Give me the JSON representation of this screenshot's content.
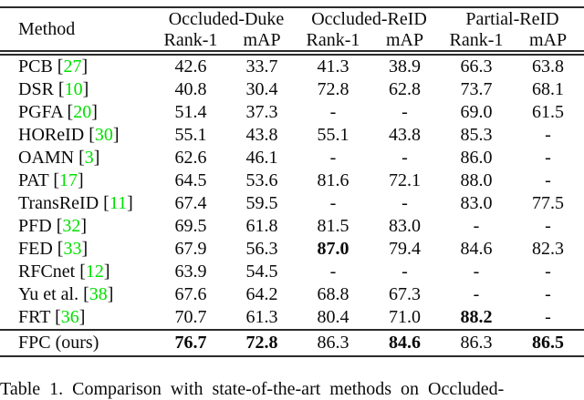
{
  "table": {
    "method_header": "Method",
    "groups": [
      "Occluded-Duke",
      "Occluded-ReID",
      "Partial-ReID"
    ],
    "sub_headers": [
      "Rank-1",
      "mAP",
      "Rank-1",
      "mAP",
      "Rank-1",
      "mAP"
    ],
    "rows": [
      {
        "method": "PCB",
        "cite": "27",
        "values": [
          "42.6",
          "33.7",
          "41.3",
          "38.9",
          "66.3",
          "63.8"
        ],
        "bold": []
      },
      {
        "method": "DSR",
        "cite": "10",
        "values": [
          "40.8",
          "30.4",
          "72.8",
          "62.8",
          "73.7",
          "68.1"
        ],
        "bold": []
      },
      {
        "method": "PGFA",
        "cite": "20",
        "values": [
          "51.4",
          "37.3",
          "-",
          "-",
          "69.0",
          "61.5"
        ],
        "bold": []
      },
      {
        "method": "HOReID",
        "cite": "30",
        "values": [
          "55.1",
          "43.8",
          "55.1",
          "43.8",
          "85.3",
          "-"
        ],
        "bold": []
      },
      {
        "method": "OAMN",
        "cite": "3",
        "values": [
          "62.6",
          "46.1",
          "-",
          "-",
          "86.0",
          "-"
        ],
        "bold": []
      },
      {
        "method": "PAT",
        "cite": "17",
        "values": [
          "64.5",
          "53.6",
          "81.6",
          "72.1",
          "88.0",
          "-"
        ],
        "bold": []
      },
      {
        "method": "TransReID",
        "cite": "11",
        "values": [
          "67.4",
          "59.5",
          "-",
          "-",
          "83.0",
          "77.5"
        ],
        "bold": []
      },
      {
        "method": "PFD",
        "cite": "32",
        "values": [
          "69.5",
          "61.8",
          "81.5",
          "83.0",
          "-",
          "-"
        ],
        "bold": []
      },
      {
        "method": "FED",
        "cite": "33",
        "values": [
          "67.9",
          "56.3",
          "87.0",
          "79.4",
          "84.6",
          "82.3"
        ],
        "bold": [
          2
        ]
      },
      {
        "method": "RFCnet",
        "cite": "12",
        "values": [
          "63.9",
          "54.5",
          "-",
          "-",
          "-",
          "-"
        ],
        "bold": []
      },
      {
        "method": "Yu et al.",
        "cite": "38",
        "values": [
          "67.6",
          "64.2",
          "68.8",
          "67.3",
          "-",
          "-"
        ],
        "bold": []
      },
      {
        "method": "FRT",
        "cite": "36",
        "values": [
          "70.7",
          "61.3",
          "80.4",
          "71.0",
          "88.2",
          "-"
        ],
        "bold": [
          4
        ]
      }
    ],
    "final_row": {
      "method": "FPC (ours)",
      "values": [
        "76.7",
        "72.8",
        "86.3",
        "84.6",
        "86.3",
        "86.5"
      ],
      "bold": [
        0,
        1,
        3,
        5
      ]
    }
  },
  "caption": "Table 1. Comparison with state-of-the-art methods on Occluded-",
  "colors": {
    "citation_green": "#00e000",
    "rule": "#2b2b2b"
  }
}
